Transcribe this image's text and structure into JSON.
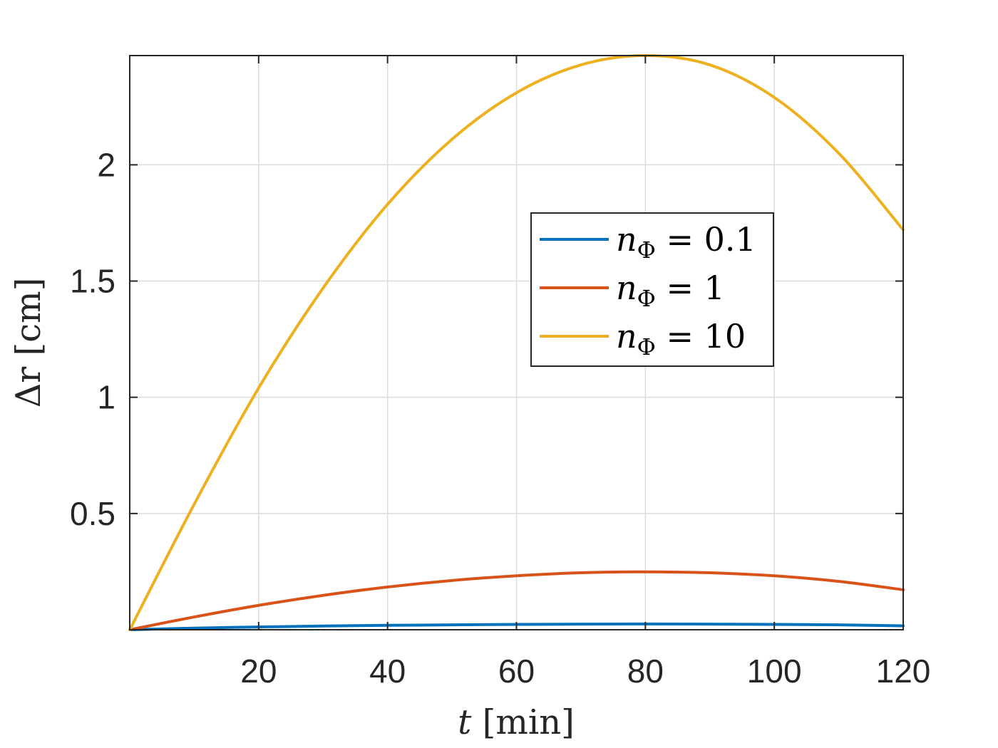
{
  "chart_data": {
    "type": "line",
    "title": "",
    "xlabel": "t [min]",
    "ylabel": "Δr [cm]",
    "xlim": [
      0,
      120
    ],
    "ylim": [
      0,
      2.47
    ],
    "xticks": [
      20,
      40,
      60,
      80,
      100,
      120
    ],
    "yticks": [
      0.5,
      1,
      1.5,
      2
    ],
    "xtick_labels": [
      "20",
      "40",
      "60",
      "80",
      "100",
      "120"
    ],
    "ytick_labels": [
      "0.5",
      "1",
      "1.5",
      "2"
    ],
    "grid": true,
    "legend_position": "center-right",
    "x": [
      0,
      10,
      20,
      30,
      40,
      50,
      60,
      70,
      80,
      90,
      100,
      110,
      120
    ],
    "series": [
      {
        "name": "n_Φ = 0.1",
        "label_base": "n",
        "label_sub": "Φ",
        "label_rest": " = 0.1",
        "color": "#0072BD",
        "values": [
          0,
          0.007,
          0.012,
          0.016,
          0.019,
          0.021,
          0.023,
          0.024,
          0.025,
          0.024,
          0.023,
          0.021,
          0.017
        ]
      },
      {
        "name": "n_Φ = 1",
        "label_base": "n",
        "label_sub": "Φ",
        "label_rest": " = 1",
        "color": "#D95319",
        "values": [
          0,
          0.055,
          0.105,
          0.148,
          0.184,
          0.212,
          0.232,
          0.245,
          0.249,
          0.245,
          0.232,
          0.208,
          0.172
        ]
      },
      {
        "name": "n_Φ = 10",
        "label_base": "n",
        "label_sub": "Φ",
        "label_rest": " = 10",
        "color": "#EDB120",
        "values": [
          0,
          0.54,
          1.04,
          1.47,
          1.83,
          2.11,
          2.31,
          2.43,
          2.47,
          2.43,
          2.29,
          2.05,
          1.72
        ]
      }
    ]
  },
  "axis_labels": {
    "x_main": "t",
    "x_unit": " [min]",
    "y_main": "Δr",
    "y_unit": " [cm]"
  }
}
